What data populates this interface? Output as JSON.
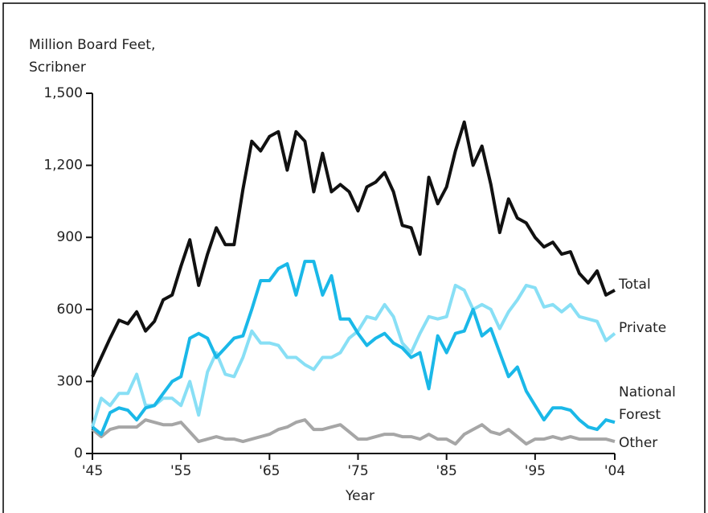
{
  "chart_data": {
    "type": "line",
    "y_label": "Million Board Feet, Scribner",
    "x_label": "Year",
    "x": [
      1945,
      1946,
      1947,
      1948,
      1949,
      1950,
      1951,
      1952,
      1953,
      1954,
      1955,
      1956,
      1957,
      1958,
      1959,
      1960,
      1961,
      1962,
      1963,
      1964,
      1965,
      1966,
      1967,
      1968,
      1969,
      1970,
      1971,
      1972,
      1973,
      1974,
      1975,
      1976,
      1977,
      1978,
      1979,
      1980,
      1981,
      1982,
      1983,
      1984,
      1985,
      1986,
      1987,
      1988,
      1989,
      1990,
      1991,
      1992,
      1993,
      1994,
      1995,
      1996,
      1997,
      1998,
      1999,
      2000,
      2001,
      2002,
      2003,
      2004
    ],
    "xlim": [
      1945,
      2004
    ],
    "xticks": [
      {
        "value": 1945,
        "label": "'45"
      },
      {
        "value": 1955,
        "label": "'55"
      },
      {
        "value": 1965,
        "label": "'65"
      },
      {
        "value": 1975,
        "label": "'75"
      },
      {
        "value": 1985,
        "label": "'85"
      },
      {
        "value": 1995,
        "label": "'95"
      },
      {
        "value": 2004,
        "label": "'04"
      }
    ],
    "ylim": [
      0,
      1500
    ],
    "yticks": [
      0,
      300,
      600,
      900,
      {
        "value": 1200,
        "label": "1,200"
      },
      {
        "value": 1500,
        "label": "1,500"
      }
    ],
    "series": [
      {
        "name": "Total",
        "color": "#111111",
        "values": [
          320,
          400,
          480,
          555,
          540,
          590,
          510,
          550,
          640,
          660,
          780,
          890,
          700,
          830,
          940,
          870,
          870,
          1100,
          1300,
          1260,
          1320,
          1340,
          1180,
          1340,
          1300,
          1090,
          1250,
          1090,
          1120,
          1090,
          1010,
          1110,
          1130,
          1170,
          1090,
          950,
          940,
          830,
          1150,
          1040,
          1110,
          1260,
          1380,
          1200,
          1280,
          1120,
          920,
          1060,
          980,
          960,
          900,
          860,
          880,
          830,
          840,
          750,
          710,
          760,
          660,
          680
        ]
      },
      {
        "name": "Private",
        "color": "#88dff5",
        "values": [
          110,
          230,
          200,
          250,
          250,
          330,
          200,
          200,
          230,
          230,
          200,
          300,
          160,
          340,
          420,
          330,
          320,
          400,
          510,
          460,
          460,
          450,
          400,
          400,
          370,
          350,
          400,
          400,
          420,
          480,
          510,
          570,
          560,
          620,
          570,
          460,
          420,
          500,
          570,
          560,
          570,
          700,
          680,
          600,
          620,
          600,
          520,
          590,
          640,
          700,
          690,
          610,
          620,
          590,
          620,
          570,
          560,
          550,
          470,
          500
        ]
      },
      {
        "name": "National Forest",
        "color": "#1ab8e8",
        "values": [
          110,
          80,
          170,
          190,
          180,
          140,
          190,
          200,
          250,
          300,
          320,
          480,
          500,
          480,
          400,
          440,
          480,
          490,
          600,
          720,
          720,
          770,
          790,
          660,
          800,
          800,
          660,
          740,
          560,
          560,
          500,
          450,
          480,
          500,
          460,
          440,
          400,
          420,
          270,
          490,
          420,
          500,
          510,
          600,
          490,
          520,
          420,
          320,
          360,
          260,
          200,
          140,
          190,
          190,
          180,
          140,
          110,
          100,
          140,
          130
        ]
      },
      {
        "name": "Other",
        "color": "#a6a6a6",
        "values": [
          100,
          70,
          100,
          110,
          110,
          110,
          140,
          130,
          120,
          120,
          130,
          90,
          50,
          60,
          70,
          60,
          60,
          50,
          60,
          70,
          80,
          100,
          110,
          130,
          140,
          100,
          100,
          110,
          120,
          90,
          60,
          60,
          70,
          80,
          80,
          70,
          70,
          60,
          80,
          60,
          60,
          40,
          80,
          100,
          120,
          90,
          80,
          100,
          70,
          40,
          60,
          60,
          70,
          60,
          70,
          60,
          60,
          60,
          60,
          50
        ]
      }
    ]
  }
}
